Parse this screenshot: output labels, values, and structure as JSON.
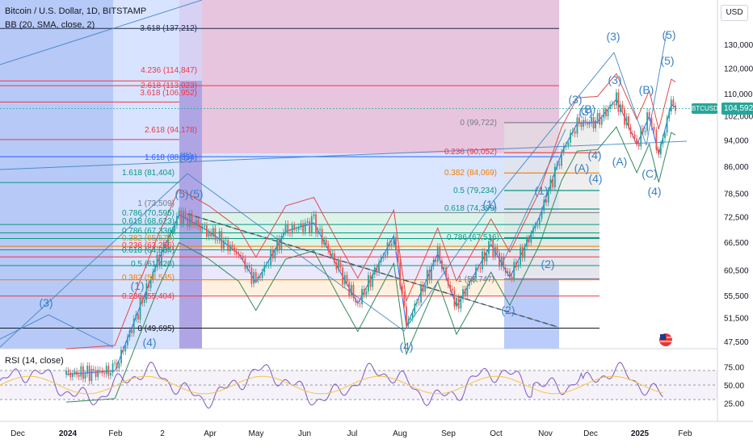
{
  "legend": {
    "title": "Bitcoin / U.S. Dollar, 1D, BITSTAMP",
    "indicator": "BB (20, SMA, close, 2)"
  },
  "rsi_legend": "RSI (14, close)",
  "currency": "USD",
  "symbol_tag": "BTCUSD",
  "current_price_label": "104,592",
  "colors": {
    "candle_up": "#26a69a",
    "candle_down": "#ef5350",
    "bb_upper": "#e04a4a",
    "bb_basis": "#2962ff",
    "bb_lower": "#2e8b57",
    "wave": "#3b82c4",
    "rsi": "#7e57c2",
    "rsi_ma": "#f5c542",
    "fib_red": "#f23645",
    "fib_teal": "#089981",
    "fib_orange": "#f57c00"
  },
  "chart_data": [
    {
      "type": "line",
      "name": "price",
      "title": "Bitcoin / U.S. Dollar, 1D, BITSTAMP",
      "x_ticks": [
        "Dec",
        "2024",
        "Feb",
        "2",
        "Apr",
        "May",
        "Jun",
        "Jul",
        "Aug",
        "Sep",
        "Oct",
        "Nov",
        "Dec",
        "2025",
        "Feb"
      ],
      "y_ticks": [
        "130,000",
        "120,000",
        "110,000",
        "102,000",
        "94,000",
        "86,000",
        "78,500",
        "72,500",
        "66,500",
        "60,500",
        "55,500",
        "51,500",
        "47,500"
      ],
      "y_scale": "log",
      "current_price": 104592,
      "price_path": [
        [
          "2024-01-01",
          42500
        ],
        [
          "2024-02-01",
          43000
        ],
        [
          "2024-02-28",
          62000
        ],
        [
          "2024-03-13",
          73000
        ],
        [
          "2024-04-01",
          69000
        ],
        [
          "2024-04-20",
          64000
        ],
        [
          "2024-05-01",
          58000
        ],
        [
          "2024-05-20",
          69000
        ],
        [
          "2024-06-07",
          71000
        ],
        [
          "2024-06-24",
          60000
        ],
        [
          "2024-07-05",
          54000
        ],
        [
          "2024-07-28",
          68000
        ],
        [
          "2024-08-05",
          50000
        ],
        [
          "2024-08-25",
          64000
        ],
        [
          "2024-09-06",
          53500
        ],
        [
          "2024-09-28",
          66000
        ],
        [
          "2024-10-10",
          59000
        ],
        [
          "2024-10-29",
          72500
        ],
        [
          "2024-11-12",
          90000
        ],
        [
          "2024-11-22",
          99500
        ],
        [
          "2024-12-05",
          100000
        ],
        [
          "2024-12-17",
          108000
        ],
        [
          "2024-12-30",
          92500
        ],
        [
          "2025-01-07",
          102000
        ],
        [
          "2025-01-13",
          89500
        ],
        [
          "2025-01-21",
          106000
        ],
        [
          "2025-01-25",
          104592
        ]
      ],
      "fib_levels_upper": [
        {
          "label": "0 (99,722)",
          "value": 99722
        },
        {
          "label": "0.236 (90,052)",
          "value": 90052
        },
        {
          "label": "0.382 (84,069)",
          "value": 84069
        },
        {
          "label": "0.5 (79,234)",
          "value": 79234
        },
        {
          "label": "0.618 (74,399)",
          "value": 74399
        },
        {
          "label": "0.786 (67,516)",
          "value": 67516
        },
        {
          "label": "1 (58,747)",
          "value": 58747
        }
      ],
      "fib_levels_ext": [
        {
          "label": "3.618 (137,212)",
          "value": 137212
        },
        {
          "label": "4.236 (114,847)",
          "value": 114847
        },
        {
          "label": "2.618 (113,023)",
          "value": 113023
        },
        {
          "label": "3.618 (106,952)",
          "value": 106952
        },
        {
          "label": "2.618 (94,178)",
          "value": 94178
        },
        {
          "label": "1.618 (88,834)",
          "value": 88834
        },
        {
          "label": "1.618 (81,404)",
          "value": 81404
        }
      ],
      "fib_levels_lower": [
        {
          "label": "1 (73,509)",
          "value": 73509
        },
        {
          "label": "0.786 (70,595)",
          "value": 70595
        },
        {
          "label": "0.618 (68,623)",
          "value": 68623
        },
        {
          "label": "0.786 (67,336)",
          "value": 67336
        },
        {
          "label": "0.382 (65,570)",
          "value": 65570
        },
        {
          "label": "0.236 (63,256)",
          "value": 63256
        },
        {
          "label": "0.618 (64,804)",
          "value": 64804
        },
        {
          "label": "0.5 (61,420)",
          "value": 61420
        },
        {
          "label": "0.382 (58,535)",
          "value": 58535
        },
        {
          "label": "0.236 (55,404)",
          "value": 55404
        },
        {
          "label": "0 (49,695)",
          "value": 49695
        }
      ],
      "wave_labels": [
        "(3)",
        "(5)",
        "(5)",
        "(5)",
        "(B)",
        "(3)",
        "(1)",
        "(1)",
        "(A)",
        "(4)",
        "(C)",
        "(4)",
        "(2)",
        "(2)",
        "(4)",
        "(3)",
        "(3)",
        "(4)",
        "(1)",
        "(5)",
        "(5)",
        "(B)",
        "(A)",
        "(4)",
        "(3)"
      ]
    },
    {
      "type": "line",
      "name": "rsi",
      "title": "RSI (14, close)",
      "y_ticks": [
        "75.00",
        "50.00",
        "25.00"
      ],
      "ylim": [
        0,
        100
      ],
      "levels": [
        70,
        50,
        30
      ]
    }
  ]
}
